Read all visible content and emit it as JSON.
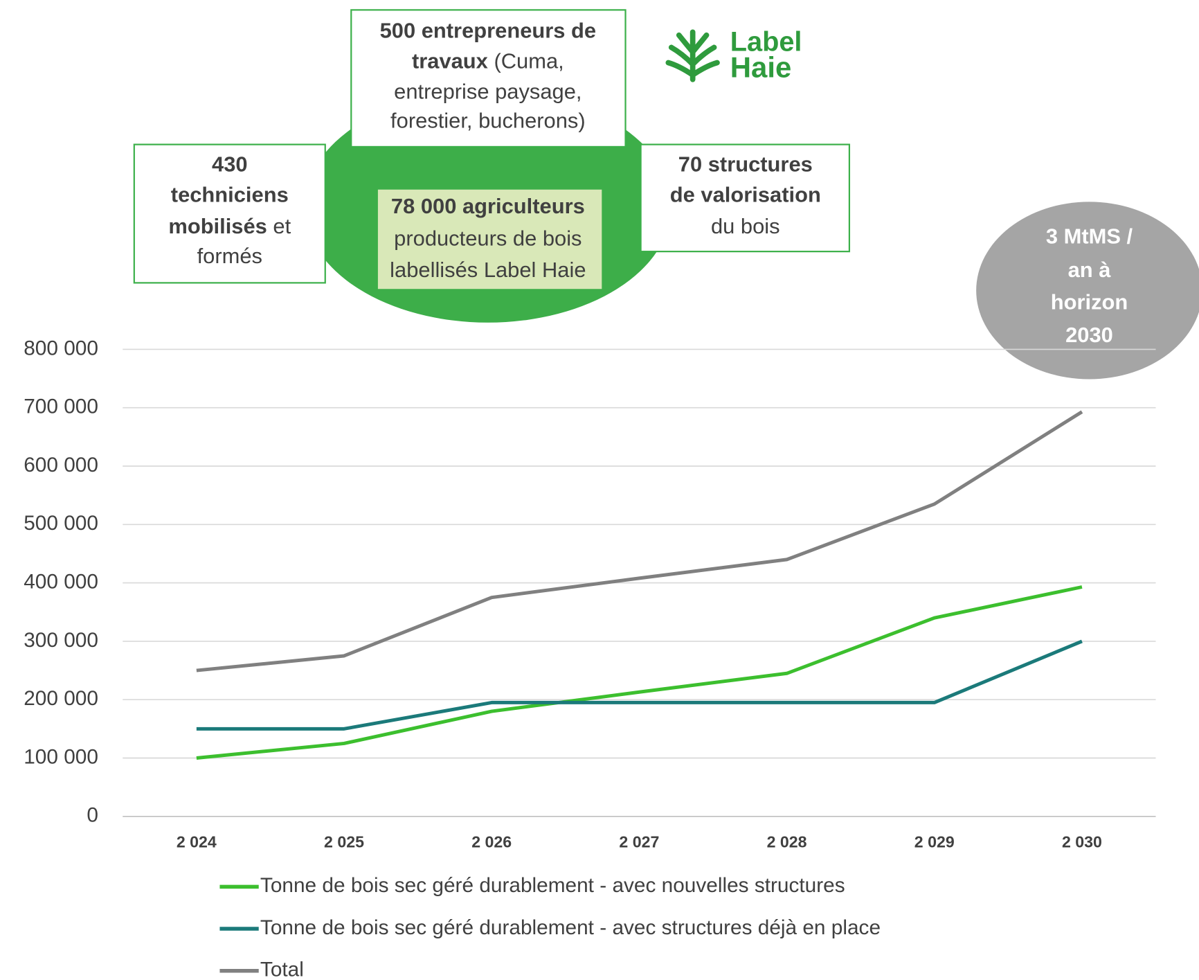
{
  "logo": {
    "line1": "Label",
    "line2": "Haie"
  },
  "boxes": [
    {
      "lines": [
        {
          "bold": "500 entrepreneurs de"
        },
        {
          "bold": "travaux",
          "regular": " (Cuma,"
        },
        {
          "regular": "entreprise paysage,"
        },
        {
          "regular": "forestier, bucherons)"
        }
      ]
    },
    {
      "lines": [
        {
          "bold": "430"
        },
        {
          "bold": "techniciens"
        },
        {
          "bold": "mobilisés",
          "regular": " et"
        },
        {
          "regular": "formés"
        }
      ]
    },
    {
      "lines": [
        {
          "bold": "70 structures"
        },
        {
          "bold": "de valorisation"
        },
        {
          "regular": "du bois"
        }
      ]
    },
    {
      "lines": [
        {
          "bold": "78 000 agriculteurs"
        },
        {
          "regular": "producteurs de bois"
        },
        {
          "regular": "labellisés Label Haie"
        }
      ]
    }
  ],
  "bubble": {
    "lines": [
      "3 MtMS /",
      "an à",
      "horizon",
      "2030"
    ]
  },
  "chart_data": {
    "type": "line",
    "categories": [
      "2 024",
      "2 025",
      "2 026",
      "2 027",
      "2 028",
      "2 029",
      "2 030"
    ],
    "series": [
      {
        "name": "Tonne de bois sec géré durablement - avec nouvelles structures",
        "color": "#3cbf2e",
        "values": [
          100000,
          125000,
          180000,
          213000,
          245000,
          340000,
          393000
        ]
      },
      {
        "name": "Tonne de bois sec géré durablement - avec structures déjà en place",
        "color": "#1b7a7a",
        "values": [
          150000,
          150000,
          195000,
          195000,
          195000,
          195000,
          300000
        ]
      },
      {
        "name": "Total",
        "color": "#808080",
        "values": [
          250000,
          275000,
          375000,
          408000,
          440000,
          535000,
          693000
        ]
      }
    ],
    "ylim": [
      0,
      800000
    ],
    "yticks": [
      0,
      {
        "value": 100000,
        "label": "100 000"
      },
      {
        "value": 200000,
        "label": "200 000"
      },
      {
        "value": 300000,
        "label": "300 000"
      },
      {
        "value": 400000,
        "label": "400 000"
      },
      {
        "value": 500000,
        "label": "500 000"
      },
      {
        "value": 600000,
        "label": "600 000"
      },
      {
        "value": 700000,
        "label": "700 000"
      },
      {
        "value": 800000,
        "label": "800 000"
      }
    ],
    "grid": true,
    "legend": "bottom"
  }
}
